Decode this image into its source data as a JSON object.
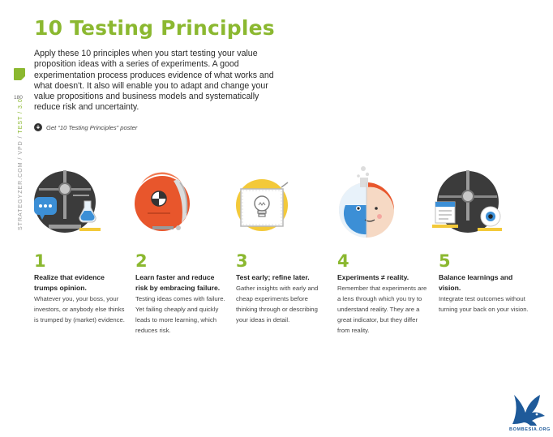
{
  "page": {
    "title": "10 Testing Principles",
    "intro": "Apply these 10 principles when you start testing your value proposition ideas with a series of experiments. A good experimentation process produces evidence of what works and what doesn't. It also will enable you to adapt and change your value propositions and business models and systematically reduce risk and uncertainty.",
    "poster_link": "Get “10 Testing Principles” poster",
    "page_number": "180",
    "side_label_prefix": "STRATEGYZER.COM / VPD / ",
    "side_label_accent": "TEST / 3.0",
    "logo_text": "BOMBESIA.ORG"
  },
  "colors": {
    "accent": "#8bb830",
    "dark": "#3a3a3a",
    "yellow": "#f3c93a",
    "blue": "#3b8fd6",
    "orange": "#e8562c"
  },
  "principles": [
    {
      "number": "1",
      "heading": "Realize that evidence trumps opinion.",
      "body": "Whatever you, your boss, your investors, or anybody else thinks is trumped by (market) evidence.",
      "icon": "scale-speech-flask-icon"
    },
    {
      "number": "2",
      "heading": "Learn faster and reduce risk by embracing failure.",
      "body": "Testing ideas comes with failure. Yet failing cheaply and quickly leads to more learning, which reduces risk.",
      "icon": "crash-helmet-icon"
    },
    {
      "number": "3",
      "heading": "Test early; refine later.",
      "body": "Gather insights with early and cheap experiments before thinking through or describing your ideas in detail.",
      "icon": "lightbulb-sketch-icon"
    },
    {
      "number": "4",
      "heading": "Experiments ≠ reality.",
      "body": "Remember that experiments are a lens through which you try to understand reality. They are a great indicator, but they differ from reality.",
      "icon": "flask-face-icon"
    },
    {
      "number": "5",
      "heading": "Balance learnings and vision.",
      "body": "Integrate test outcomes without turning your back on your vision.",
      "icon": "scale-eye-document-icon"
    }
  ]
}
